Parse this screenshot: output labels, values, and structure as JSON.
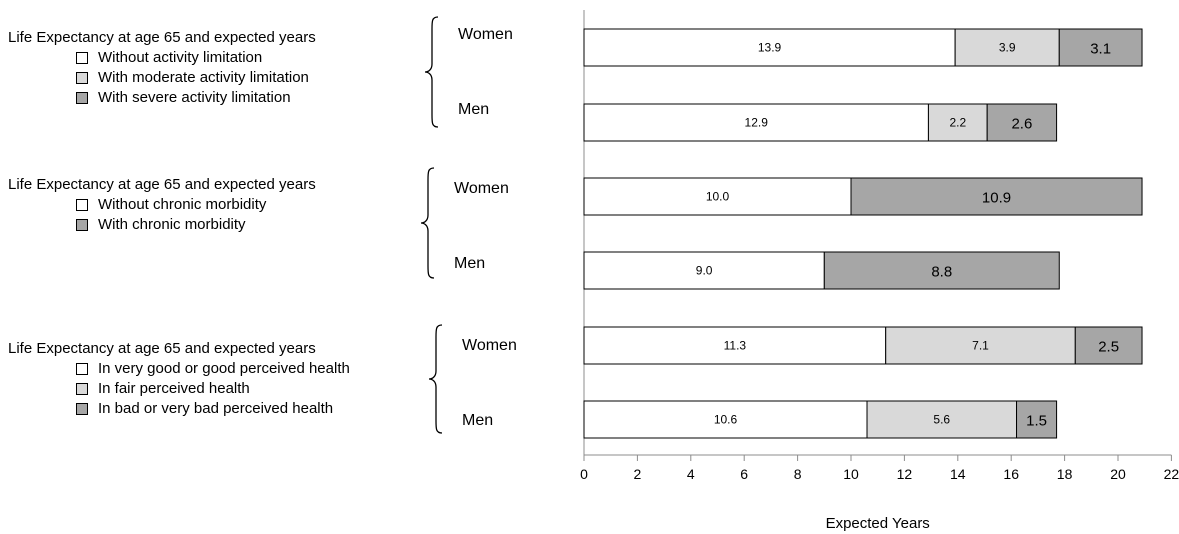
{
  "chart_data": {
    "type": "bar",
    "orientation": "horizontal",
    "stacked": true,
    "xlabel": "Expected Years",
    "xlim": [
      0,
      22
    ],
    "xticks": [
      0,
      2,
      4,
      6,
      8,
      10,
      12,
      14,
      16,
      18,
      20,
      22
    ],
    "grid": false,
    "colors": {
      "white": "#ffffff",
      "light": "#d9d9d9",
      "dark": "#a6a6a6",
      "outline": "#000000"
    },
    "groups": [
      {
        "title": "Life Expectancy at age 65 and expected years",
        "legend": [
          {
            "label": "Without activity limitation",
            "color": "white"
          },
          {
            "label": "With moderate activity limitation",
            "color": "light"
          },
          {
            "label": "With severe activity limitation",
            "color": "dark"
          }
        ],
        "bars": [
          {
            "category": "Women",
            "values": [
              13.9,
              3.9,
              3.1
            ],
            "labels": [
              "13.9",
              "3.9",
              "3.1"
            ]
          },
          {
            "category": "Men",
            "values": [
              12.9,
              2.2,
              2.6
            ],
            "labels": [
              "12.9",
              "2.2",
              "2.6"
            ]
          }
        ]
      },
      {
        "title": "Life Expectancy at age 65 and expected years",
        "legend": [
          {
            "label": "Without chronic morbidity",
            "color": "white"
          },
          {
            "label": "With chronic morbidity",
            "color": "dark"
          }
        ],
        "bars": [
          {
            "category": "Women",
            "values": [
              10.0,
              10.9
            ],
            "labels": [
              "10.0",
              "10.9"
            ]
          },
          {
            "category": "Men",
            "values": [
              9.0,
              8.8
            ],
            "labels": [
              "9.0",
              "8.8"
            ]
          }
        ]
      },
      {
        "title": "Life Expectancy at age 65 and expected years",
        "legend": [
          {
            "label": "In very good or good perceived health",
            "color": "white"
          },
          {
            "label": "In fair perceived health",
            "color": "light"
          },
          {
            "label": "In bad or very bad perceived health",
            "color": "dark"
          }
        ],
        "bars": [
          {
            "category": "Women",
            "values": [
              11.3,
              7.1,
              2.5
            ],
            "labels": [
              "11.3",
              "7.1",
              "2.5"
            ]
          },
          {
            "category": "Men",
            "values": [
              10.6,
              5.6,
              1.5
            ],
            "labels": [
              "10.6",
              "5.6",
              "1.5"
            ]
          }
        ]
      }
    ]
  }
}
